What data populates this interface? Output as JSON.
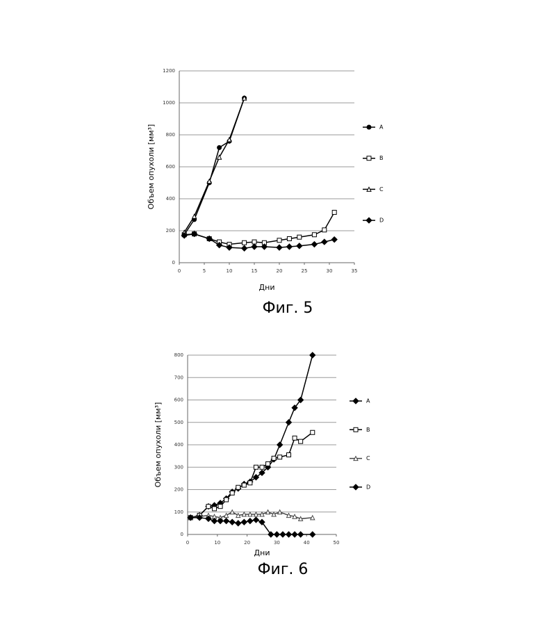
{
  "chart_data": [
    {
      "type": "line",
      "caption": "Фиг. 5",
      "x_label": "Дни",
      "y_label": "Объем опухоли  [мм³]",
      "xlim": [
        0,
        35
      ],
      "xticks": [
        0,
        5,
        10,
        15,
        20,
        25,
        30,
        35
      ],
      "ylim": [
        0,
        1200
      ],
      "yticks": [
        0,
        200,
        400,
        600,
        800,
        1000,
        1200
      ],
      "grid": true,
      "series": [
        {
          "name": "A",
          "color": "#000000",
          "marker": "circle",
          "x": [
            1,
            3,
            6,
            8,
            10,
            13
          ],
          "values": [
            175,
            270,
            500,
            720,
            760,
            1030
          ]
        },
        {
          "name": "B",
          "color": "#000000",
          "marker": "square",
          "x": [
            1,
            3,
            6,
            8,
            10,
            13,
            15,
            17,
            20,
            22,
            24,
            27,
            29,
            31
          ],
          "values": [
            175,
            180,
            150,
            130,
            115,
            125,
            130,
            125,
            140,
            150,
            160,
            175,
            205,
            315
          ]
        },
        {
          "name": "C",
          "color": "#000000",
          "marker": "triangle",
          "x": [
            1,
            3,
            6,
            8,
            10,
            13
          ],
          "values": [
            190,
            290,
            510,
            660,
            770,
            1030
          ]
        },
        {
          "name": "D",
          "color": "#000000",
          "marker": "diamond",
          "x": [
            1,
            3,
            6,
            8,
            10,
            13,
            15,
            17,
            20,
            22,
            24,
            27,
            29,
            31
          ],
          "values": [
            170,
            180,
            150,
            110,
            95,
            90,
            100,
            100,
            95,
            100,
            105,
            115,
            130,
            145
          ]
        }
      ]
    },
    {
      "type": "line",
      "caption": "Фиг. 6",
      "x_label": "Дни",
      "y_label": "Объем опухоли  [мм³]",
      "xlim": [
        0,
        50
      ],
      "xticks": [
        0,
        10,
        20,
        30,
        40,
        50
      ],
      "ylim": [
        0,
        800
      ],
      "yticks": [
        0,
        100,
        200,
        300,
        400,
        500,
        600,
        700,
        800
      ],
      "grid": true,
      "series": [
        {
          "name": "A",
          "color": "#000000",
          "marker": "diamond",
          "x": [
            1,
            4,
            7,
            9,
            11,
            13,
            15,
            17,
            19,
            21,
            23,
            25,
            27,
            29,
            31,
            34,
            36,
            38,
            42
          ],
          "values": [
            75,
            85,
            125,
            130,
            140,
            160,
            190,
            205,
            225,
            235,
            255,
            275,
            300,
            335,
            400,
            500,
            565,
            600,
            800
          ]
        },
        {
          "name": "B",
          "color": "#000000",
          "marker": "square",
          "x": [
            1,
            4,
            7,
            9,
            11,
            13,
            15,
            17,
            19,
            21,
            23,
            25,
            27,
            29,
            31,
            34,
            36,
            38,
            42
          ],
          "values": [
            75,
            85,
            125,
            115,
            125,
            155,
            185,
            210,
            220,
            230,
            300,
            300,
            315,
            340,
            345,
            355,
            430,
            415,
            455
          ]
        },
        {
          "name": "C",
          "color": "#444444",
          "marker": "triangle",
          "x": [
            1,
            4,
            7,
            9,
            11,
            13,
            15,
            17,
            19,
            21,
            23,
            25,
            27,
            29,
            31,
            34,
            36,
            38,
            42
          ],
          "values": [
            75,
            80,
            85,
            80,
            75,
            85,
            100,
            85,
            90,
            90,
            90,
            90,
            100,
            90,
            100,
            85,
            80,
            70,
            75
          ]
        },
        {
          "name": "D",
          "color": "#000000",
          "marker": "diamond",
          "x": [
            1,
            4,
            7,
            9,
            11,
            13,
            15,
            17,
            19,
            21,
            23,
            25,
            28,
            30,
            32,
            34,
            36,
            38,
            42
          ],
          "values": [
            75,
            75,
            70,
            60,
            60,
            60,
            55,
            50,
            55,
            60,
            65,
            55,
            0,
            0,
            0,
            0,
            0,
            0,
            0
          ]
        }
      ]
    }
  ]
}
